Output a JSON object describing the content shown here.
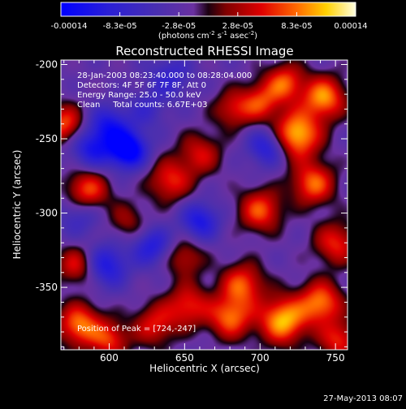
{
  "chart_data": {
    "type": "heatmap",
    "title": "Reconstructed RHESSI Image",
    "xlabel": "Heliocentric X (arcsec)",
    "ylabel": "Heliocentric Y (arcsec)",
    "xlim": [
      568,
      758
    ],
    "ylim": [
      -392,
      -197
    ],
    "x_ticks": [
      600,
      650,
      700,
      750
    ],
    "y_ticks": [
      -200,
      -250,
      -300,
      -350
    ],
    "colorbar": {
      "min": -0.00014,
      "max": 0.00014,
      "tick_labels": [
        "-0.00014",
        "-8.3e-05",
        "-2.8e-05",
        "2.8e-05",
        "8.3e-05",
        "0.00014"
      ],
      "unit_label": "(photons cm",
      "unit_exp1": "-2",
      "unit_mid": " s",
      "unit_exp2": "-1",
      "unit_mid2": " asec",
      "unit_exp3": "-2",
      "unit_end": ")"
    },
    "annotations": [
      "28-Jan-2003 08:23:40.000 to 08:28:04.000",
      "Detectors: 4F 5F 6F 7F 8F, Att 0",
      "Energy Range: 25.0 - 50.0 keV",
      "Clean     Total counts: 6.67E+03"
    ],
    "peak_text": "Position of Peak = [724,-247]",
    "peak": [
      724,
      -247
    ],
    "grid": false,
    "blobs": [
      {
        "x": 612,
        "y": -257,
        "a": -1.0,
        "s": 9
      },
      {
        "x": 588,
        "y": -256,
        "a": -0.6,
        "s": 10
      },
      {
        "x": 600,
        "y": -240,
        "a": -0.55,
        "s": 9
      },
      {
        "x": 660,
        "y": -305,
        "a": -0.6,
        "s": 9
      },
      {
        "x": 598,
        "y": -335,
        "a": -0.6,
        "s": 10
      },
      {
        "x": 628,
        "y": -322,
        "a": -0.55,
        "s": 9
      },
      {
        "x": 705,
        "y": -255,
        "a": -0.6,
        "s": 9
      },
      {
        "x": 580,
        "y": -300,
        "a": -0.4,
        "s": 10
      },
      {
        "x": 640,
        "y": -208,
        "a": -0.4,
        "s": 10
      },
      {
        "x": 724,
        "y": -247,
        "a": 1.0,
        "s": 11
      },
      {
        "x": 742,
        "y": -222,
        "a": 0.85,
        "s": 10
      },
      {
        "x": 735,
        "y": -280,
        "a": 0.75,
        "s": 10
      },
      {
        "x": 716,
        "y": -212,
        "a": 0.7,
        "s": 9
      },
      {
        "x": 700,
        "y": -298,
        "a": 0.7,
        "s": 10
      },
      {
        "x": 715,
        "y": -372,
        "a": 0.95,
        "s": 11
      },
      {
        "x": 740,
        "y": -360,
        "a": 0.8,
        "s": 10
      },
      {
        "x": 688,
        "y": -348,
        "a": 0.7,
        "s": 10
      },
      {
        "x": 680,
        "y": -370,
        "a": 0.75,
        "s": 10
      },
      {
        "x": 750,
        "y": -320,
        "a": 0.6,
        "s": 10
      },
      {
        "x": 652,
        "y": -362,
        "a": 0.6,
        "s": 10
      },
      {
        "x": 630,
        "y": -375,
        "a": 0.55,
        "s": 10
      },
      {
        "x": 580,
        "y": -375,
        "a": 0.8,
        "s": 10
      },
      {
        "x": 600,
        "y": -385,
        "a": 0.6,
        "s": 9
      },
      {
        "x": 578,
        "y": -335,
        "a": 0.55,
        "s": 9
      },
      {
        "x": 585,
        "y": -285,
        "a": 0.75,
        "s": 10
      },
      {
        "x": 570,
        "y": -240,
        "a": 0.7,
        "s": 9
      },
      {
        "x": 640,
        "y": -278,
        "a": 0.6,
        "s": 10
      },
      {
        "x": 660,
        "y": -260,
        "a": 0.5,
        "s": 10
      },
      {
        "x": 650,
        "y": -330,
        "a": 0.45,
        "s": 9
      },
      {
        "x": 682,
        "y": -230,
        "a": 0.5,
        "s": 9
      },
      {
        "x": 700,
        "y": -225,
        "a": 0.6,
        "s": 9
      },
      {
        "x": 625,
        "y": -230,
        "a": -0.3,
        "s": 9
      },
      {
        "x": 612,
        "y": -305,
        "a": 0.35,
        "s": 9
      },
      {
        "x": 752,
        "y": -385,
        "a": 0.6,
        "s": 9
      }
    ]
  },
  "footer": {
    "timestamp": "27-May-2013 08:07"
  }
}
